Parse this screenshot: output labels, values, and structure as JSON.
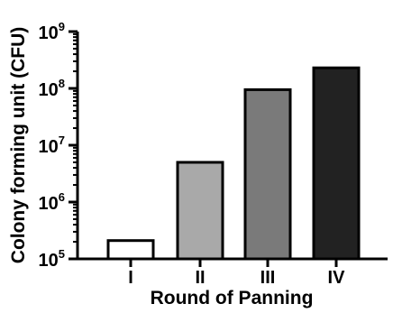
{
  "chart_data": {
    "type": "bar",
    "title": "",
    "xlabel": "Round of Panning",
    "ylabel": "Colony forming unit (CFU)",
    "yscale": "log",
    "ylim": [
      100000,
      1000000000
    ],
    "yticks": [
      {
        "value": 100000,
        "base": "10",
        "exp": "5"
      },
      {
        "value": 1000000,
        "base": "10",
        "exp": "6"
      },
      {
        "value": 10000000,
        "base": "10",
        "exp": "7"
      },
      {
        "value": 100000000,
        "base": "10",
        "exp": "8"
      },
      {
        "value": 1000000000,
        "base": "10",
        "exp": "9"
      }
    ],
    "categories": [
      "I",
      "II",
      "III",
      "IV"
    ],
    "values": [
      210000,
      5000000,
      95000000,
      230000000
    ],
    "bar_colors": [
      "#ffffff",
      "#a9a9a9",
      "#7a7a7a",
      "#222222"
    ],
    "grid": false
  }
}
